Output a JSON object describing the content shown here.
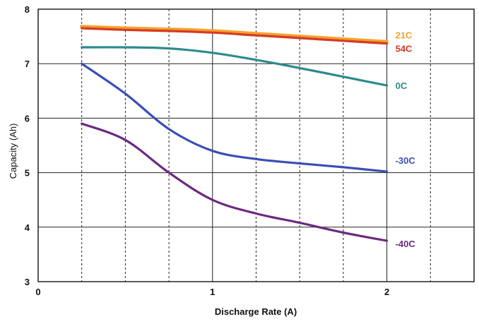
{
  "chart_data": {
    "type": "line",
    "title": "",
    "xlabel": "Discharge Rate (A)",
    "ylabel": "Capacity (Ah)",
    "xlim": [
      0,
      2.5
    ],
    "ylim": [
      3,
      8
    ],
    "x_major_ticks": [
      0,
      1,
      2
    ],
    "x_major_tick_labels": [
      "0",
      "1",
      "2"
    ],
    "x_minor_ticks": [
      0.25,
      0.5,
      0.75,
      1.25,
      1.5,
      1.75,
      2.25
    ],
    "y_ticks": [
      3,
      4,
      5,
      6,
      7,
      8
    ],
    "y_tick_labels": [
      "3",
      "4",
      "5",
      "6",
      "7",
      "8"
    ],
    "grid": true,
    "legend": "labels at right end of each line",
    "series": [
      {
        "name": "21C",
        "color": "#F5A12B",
        "x": [
          0.25,
          0.5,
          0.75,
          1.0,
          1.25,
          1.5,
          1.75,
          2.0
        ],
        "y": [
          7.68,
          7.65,
          7.63,
          7.6,
          7.55,
          7.5,
          7.45,
          7.4
        ]
      },
      {
        "name": "54C",
        "color": "#D63A24",
        "x": [
          0.25,
          0.5,
          0.75,
          1.0,
          1.25,
          1.5,
          1.75,
          2.0
        ],
        "y": [
          7.65,
          7.62,
          7.6,
          7.57,
          7.52,
          7.47,
          7.42,
          7.37
        ]
      },
      {
        "name": "0C",
        "color": "#2E8B8B",
        "x": [
          0.25,
          0.5,
          0.75,
          1.0,
          1.25,
          1.5,
          1.75,
          2.0
        ],
        "y": [
          7.3,
          7.3,
          7.28,
          7.2,
          7.07,
          6.92,
          6.76,
          6.6
        ]
      },
      {
        "name": "-30C",
        "color": "#3B4FB5",
        "x": [
          0.25,
          0.5,
          0.75,
          1.0,
          1.25,
          1.5,
          1.75,
          2.0
        ],
        "y": [
          7.0,
          6.45,
          5.8,
          5.4,
          5.25,
          5.17,
          5.1,
          5.02
        ]
      },
      {
        "name": "-40C",
        "color": "#6B2A80",
        "x": [
          0.25,
          0.5,
          0.75,
          1.0,
          1.25,
          1.5,
          1.75,
          2.0
        ],
        "y": [
          5.9,
          5.6,
          5.0,
          4.5,
          4.25,
          4.08,
          3.9,
          3.75
        ]
      }
    ]
  }
}
